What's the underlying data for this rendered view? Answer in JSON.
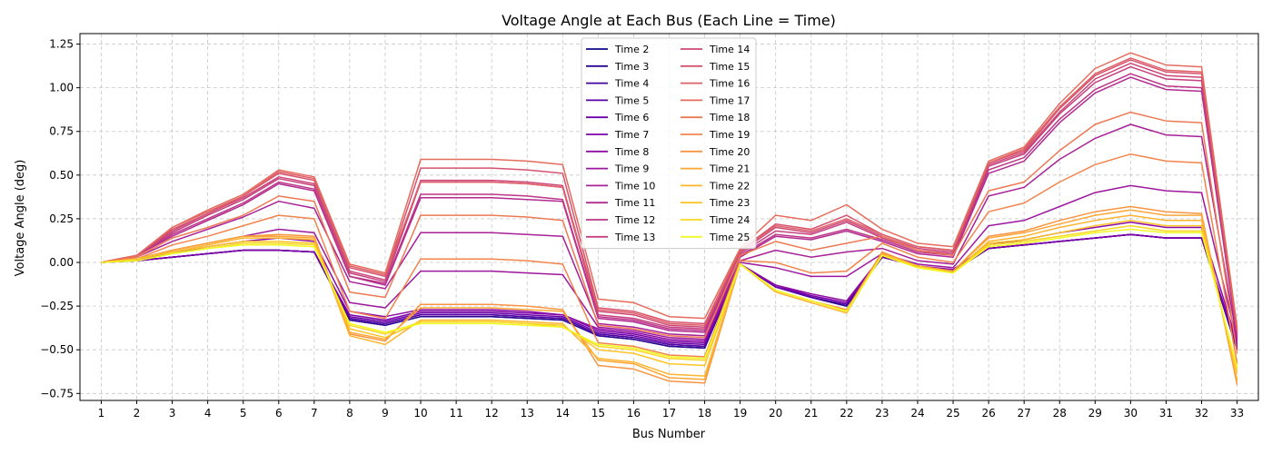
{
  "chart_data": {
    "type": "line",
    "title": "Voltage Angle at Each Bus (Each Line = Time)",
    "xlabel": "Bus Number",
    "ylabel": "Voltage Angle (deg)",
    "x": [
      1,
      2,
      3,
      4,
      5,
      6,
      7,
      8,
      9,
      10,
      11,
      12,
      13,
      14,
      15,
      16,
      17,
      18,
      19,
      20,
      21,
      22,
      23,
      24,
      25,
      26,
      27,
      28,
      29,
      30,
      31,
      32,
      33
    ],
    "xlim": [
      0.4,
      33.6
    ],
    "ylim": [
      -0.79,
      1.31
    ],
    "yticks": [
      -0.75,
      -0.5,
      -0.25,
      0.0,
      0.25,
      0.5,
      0.75,
      1.0,
      1.25
    ],
    "ytick_labels": [
      "−0.75",
      "−0.50",
      "−0.25",
      "0.00",
      "0.25",
      "0.50",
      "0.75",
      "1.00",
      "1.25"
    ],
    "grid": true,
    "legend_position": "top-center",
    "series": [
      {
        "name": "Time 2",
        "color": "#0d0887",
        "values": [
          0,
          0.01,
          0.03,
          0.05,
          0.07,
          0.07,
          0.06,
          -0.33,
          -0.36,
          -0.31,
          -0.31,
          -0.31,
          -0.32,
          -0.33,
          -0.42,
          -0.44,
          -0.48,
          -0.49,
          -0.01,
          -0.14,
          -0.2,
          -0.25,
          0.03,
          -0.02,
          -0.05,
          0.08,
          0.1,
          0.12,
          0.14,
          0.16,
          0.14,
          0.14,
          -0.5
        ]
      },
      {
        "name": "Time 3",
        "color": "#2a0593",
        "values": [
          0,
          0.01,
          0.03,
          0.05,
          0.07,
          0.07,
          0.06,
          -0.33,
          -0.36,
          -0.31,
          -0.31,
          -0.31,
          -0.32,
          -0.33,
          -0.42,
          -0.44,
          -0.48,
          -0.49,
          -0.01,
          -0.14,
          -0.2,
          -0.25,
          0.03,
          -0.02,
          -0.05,
          0.08,
          0.1,
          0.12,
          0.14,
          0.16,
          0.14,
          0.14,
          -0.5
        ]
      },
      {
        "name": "Time 4",
        "color": "#41049d",
        "values": [
          0,
          0.01,
          0.03,
          0.05,
          0.07,
          0.07,
          0.06,
          -0.32,
          -0.35,
          -0.3,
          -0.3,
          -0.3,
          -0.31,
          -0.32,
          -0.41,
          -0.43,
          -0.47,
          -0.48,
          -0.01,
          -0.14,
          -0.2,
          -0.24,
          0.03,
          -0.02,
          -0.05,
          0.08,
          0.1,
          0.12,
          0.14,
          0.16,
          0.14,
          0.14,
          -0.49
        ]
      },
      {
        "name": "Time 5",
        "color": "#5402a3",
        "values": [
          0,
          0.01,
          0.03,
          0.05,
          0.07,
          0.07,
          0.06,
          -0.32,
          -0.35,
          -0.3,
          -0.3,
          -0.3,
          -0.31,
          -0.32,
          -0.41,
          -0.43,
          -0.47,
          -0.48,
          -0.01,
          -0.14,
          -0.2,
          -0.24,
          0.03,
          -0.02,
          -0.05,
          0.08,
          0.1,
          0.12,
          0.14,
          0.16,
          0.14,
          0.14,
          -0.49
        ]
      },
      {
        "name": "Time 6",
        "color": "#6a00a8",
        "values": [
          0,
          0.01,
          0.03,
          0.05,
          0.07,
          0.07,
          0.06,
          -0.31,
          -0.34,
          -0.29,
          -0.29,
          -0.29,
          -0.3,
          -0.31,
          -0.4,
          -0.42,
          -0.46,
          -0.47,
          -0.01,
          -0.14,
          -0.19,
          -0.23,
          0.03,
          -0.02,
          -0.05,
          0.08,
          0.1,
          0.12,
          0.14,
          0.16,
          0.14,
          0.14,
          -0.48
        ]
      },
      {
        "name": "Time 7",
        "color": "#7c02a8",
        "values": [
          0,
          0.01,
          0.03,
          0.05,
          0.07,
          0.07,
          0.06,
          -0.3,
          -0.33,
          -0.28,
          -0.28,
          -0.28,
          -0.29,
          -0.3,
          -0.39,
          -0.41,
          -0.45,
          -0.46,
          -0.01,
          -0.13,
          -0.19,
          -0.23,
          0.03,
          -0.02,
          -0.05,
          0.08,
          0.1,
          0.12,
          0.14,
          0.16,
          0.14,
          0.14,
          -0.47
        ]
      },
      {
        "name": "Time 8",
        "color": "#8f0da4",
        "values": [
          0,
          0.02,
          0.05,
          0.09,
          0.12,
          0.14,
          0.12,
          -0.28,
          -0.31,
          -0.27,
          -0.27,
          -0.27,
          -0.28,
          -0.3,
          -0.38,
          -0.4,
          -0.44,
          -0.45,
          -0.01,
          -0.13,
          -0.18,
          -0.22,
          0.04,
          -0.02,
          -0.04,
          0.1,
          0.13,
          0.17,
          0.2,
          0.23,
          0.2,
          0.2,
          -0.46
        ]
      },
      {
        "name": "Time 9",
        "color": "#9c179e",
        "values": [
          0,
          0.02,
          0.07,
          0.11,
          0.15,
          0.19,
          0.17,
          -0.23,
          -0.26,
          -0.05,
          -0.05,
          -0.05,
          -0.06,
          -0.07,
          -0.37,
          -0.39,
          -0.43,
          -0.44,
          0.0,
          -0.03,
          -0.08,
          -0.08,
          0.05,
          -0.01,
          -0.03,
          0.21,
          0.24,
          0.32,
          0.4,
          0.44,
          0.41,
          0.4,
          -0.45
        ]
      },
      {
        "name": "Time 10",
        "color": "#a72197",
        "values": [
          0,
          0.03,
          0.12,
          0.19,
          0.26,
          0.35,
          0.31,
          -0.11,
          -0.15,
          0.17,
          0.17,
          0.17,
          0.16,
          0.15,
          -0.35,
          -0.37,
          -0.41,
          -0.42,
          0.01,
          0.07,
          0.03,
          0.06,
          0.08,
          0.01,
          -0.01,
          0.38,
          0.43,
          0.59,
          0.71,
          0.79,
          0.73,
          0.72,
          -0.44
        ]
      },
      {
        "name": "Time 11",
        "color": "#b12a90",
        "values": [
          0,
          0.04,
          0.15,
          0.24,
          0.33,
          0.45,
          0.41,
          -0.08,
          -0.13,
          0.37,
          0.37,
          0.37,
          0.36,
          0.35,
          -0.32,
          -0.34,
          -0.39,
          -0.4,
          0.03,
          0.15,
          0.13,
          0.18,
          0.12,
          0.05,
          0.03,
          0.51,
          0.58,
          0.8,
          0.97,
          1.06,
          0.99,
          0.98,
          -0.43
        ]
      },
      {
        "name": "Time 12",
        "color": "#bc3587",
        "values": [
          0,
          0.04,
          0.16,
          0.25,
          0.34,
          0.46,
          0.42,
          -0.08,
          -0.12,
          0.39,
          0.39,
          0.39,
          0.38,
          0.36,
          -0.31,
          -0.33,
          -0.38,
          -0.39,
          0.04,
          0.16,
          0.14,
          0.19,
          0.13,
          0.06,
          0.04,
          0.53,
          0.6,
          0.82,
          0.99,
          1.08,
          1.01,
          1.0,
          -0.42
        ]
      },
      {
        "name": "Time 13",
        "color": "#c5407e",
        "values": [
          0,
          0.04,
          0.17,
          0.27,
          0.36,
          0.48,
          0.44,
          -0.06,
          -0.11,
          0.46,
          0.46,
          0.46,
          0.45,
          0.43,
          -0.3,
          -0.32,
          -0.37,
          -0.38,
          0.05,
          0.18,
          0.16,
          0.23,
          0.14,
          0.07,
          0.05,
          0.55,
          0.62,
          0.85,
          1.03,
          1.12,
          1.05,
          1.04,
          -0.41
        ]
      },
      {
        "name": "Time 14",
        "color": "#cc4778",
        "values": [
          0,
          0.04,
          0.18,
          0.28,
          0.37,
          0.49,
          0.45,
          -0.05,
          -0.1,
          0.47,
          0.47,
          0.47,
          0.46,
          0.44,
          -0.28,
          -0.3,
          -0.36,
          -0.37,
          0.06,
          0.2,
          0.17,
          0.24,
          0.15,
          0.08,
          0.06,
          0.56,
          0.63,
          0.86,
          1.05,
          1.14,
          1.07,
          1.06,
          -0.4
        ]
      },
      {
        "name": "Time 15",
        "color": "#d5536f",
        "values": [
          0,
          0.04,
          0.19,
          0.28,
          0.38,
          0.51,
          0.47,
          -0.03,
          -0.08,
          0.54,
          0.54,
          0.54,
          0.53,
          0.51,
          -0.26,
          -0.28,
          -0.34,
          -0.35,
          0.07,
          0.22,
          0.19,
          0.27,
          0.16,
          0.09,
          0.07,
          0.57,
          0.64,
          0.88,
          1.07,
          1.16,
          1.09,
          1.08,
          -0.38
        ]
      },
      {
        "name": "Time 16",
        "color": "#de5f65",
        "values": [
          0,
          0.04,
          0.2,
          0.29,
          0.38,
          0.52,
          0.48,
          -0.02,
          -0.07,
          0.46,
          0.46,
          0.46,
          0.45,
          0.43,
          -0.27,
          -0.29,
          -0.35,
          -0.36,
          0.07,
          0.21,
          0.18,
          0.25,
          0.16,
          0.09,
          0.07,
          0.57,
          0.65,
          0.89,
          1.08,
          1.17,
          1.1,
          1.09,
          -0.39
        ]
      },
      {
        "name": "Time 17",
        "color": "#e56b5d",
        "values": [
          0,
          0.04,
          0.2,
          0.3,
          0.39,
          0.53,
          0.49,
          -0.01,
          -0.06,
          0.59,
          0.59,
          0.59,
          0.58,
          0.56,
          -0.21,
          -0.23,
          -0.31,
          -0.32,
          0.08,
          0.27,
          0.24,
          0.33,
          0.19,
          0.11,
          0.09,
          0.58,
          0.66,
          0.91,
          1.11,
          1.2,
          1.13,
          1.12,
          -0.37
        ]
      },
      {
        "name": "Time 18",
        "color": "#ed7953",
        "values": [
          0,
          0.03,
          0.14,
          0.2,
          0.27,
          0.38,
          0.35,
          -0.17,
          -0.2,
          0.27,
          0.27,
          0.27,
          0.26,
          0.24,
          -0.36,
          -0.38,
          -0.42,
          -0.43,
          0.04,
          0.12,
          0.07,
          0.11,
          0.15,
          0.07,
          0.04,
          0.41,
          0.46,
          0.64,
          0.79,
          0.86,
          0.81,
          0.8,
          -0.52
        ]
      },
      {
        "name": "Time 19",
        "color": "#f2844b",
        "values": [
          0,
          0.02,
          0.1,
          0.15,
          0.21,
          0.27,
          0.25,
          -0.28,
          -0.32,
          0.02,
          0.02,
          0.02,
          0.01,
          -0.01,
          -0.46,
          -0.48,
          -0.53,
          -0.54,
          0.01,
          0.0,
          -0.06,
          -0.05,
          0.11,
          0.03,
          0.0,
          0.29,
          0.34,
          0.46,
          0.56,
          0.62,
          0.58,
          0.57,
          -0.58
        ]
      },
      {
        "name": "Time 20",
        "color": "#f89441",
        "values": [
          0,
          0.02,
          0.07,
          0.11,
          0.15,
          0.16,
          0.15,
          -0.41,
          -0.45,
          -0.24,
          -0.24,
          -0.24,
          -0.25,
          -0.27,
          -0.59,
          -0.61,
          -0.68,
          -0.69,
          -0.01,
          -0.16,
          -0.22,
          -0.27,
          0.06,
          -0.02,
          -0.05,
          0.15,
          0.18,
          0.24,
          0.29,
          0.32,
          0.29,
          0.28,
          -0.7
        ]
      },
      {
        "name": "Time 21",
        "color": "#fca636",
        "values": [
          0,
          0.02,
          0.07,
          0.11,
          0.15,
          0.15,
          0.14,
          -0.4,
          -0.44,
          -0.26,
          -0.26,
          -0.26,
          -0.27,
          -0.28,
          -0.56,
          -0.58,
          -0.66,
          -0.67,
          -0.01,
          -0.16,
          -0.22,
          -0.28,
          0.05,
          -0.02,
          -0.05,
          0.14,
          0.17,
          0.22,
          0.27,
          0.3,
          0.27,
          0.27,
          -0.68
        ]
      },
      {
        "name": "Time 22",
        "color": "#fdb42f",
        "values": [
          0,
          0.02,
          0.06,
          0.1,
          0.14,
          0.14,
          0.13,
          -0.42,
          -0.47,
          -0.33,
          -0.33,
          -0.33,
          -0.34,
          -0.35,
          -0.55,
          -0.57,
          -0.64,
          -0.65,
          -0.01,
          -0.17,
          -0.23,
          -0.29,
          0.05,
          -0.02,
          -0.06,
          0.12,
          0.15,
          0.2,
          0.24,
          0.27,
          0.24,
          0.24,
          -0.67
        ]
      },
      {
        "name": "Time 23",
        "color": "#fbc529",
        "values": [
          0,
          0.02,
          0.06,
          0.09,
          0.12,
          0.12,
          0.11,
          -0.38,
          -0.43,
          -0.34,
          -0.34,
          -0.34,
          -0.35,
          -0.36,
          -0.5,
          -0.52,
          -0.58,
          -0.59,
          -0.01,
          -0.16,
          -0.22,
          -0.28,
          0.04,
          -0.02,
          -0.06,
          0.11,
          0.13,
          0.17,
          0.21,
          0.24,
          0.21,
          0.21,
          -0.63
        ]
      },
      {
        "name": "Time 24",
        "color": "#f9d722",
        "values": [
          0,
          0.01,
          0.05,
          0.08,
          0.11,
          0.11,
          0.1,
          -0.36,
          -0.41,
          -0.34,
          -0.34,
          -0.34,
          -0.35,
          -0.37,
          -0.48,
          -0.5,
          -0.55,
          -0.56,
          -0.01,
          -0.16,
          -0.22,
          -0.28,
          0.04,
          -0.03,
          -0.06,
          0.1,
          0.12,
          0.15,
          0.18,
          0.21,
          0.18,
          0.18,
          -0.61
        ]
      },
      {
        "name": "Time 25",
        "color": "#f0f921",
        "values": [
          0,
          0.01,
          0.05,
          0.08,
          0.1,
          0.1,
          0.09,
          -0.35,
          -0.4,
          -0.35,
          -0.35,
          -0.35,
          -0.36,
          -0.37,
          -0.47,
          -0.49,
          -0.54,
          -0.55,
          -0.01,
          -0.16,
          -0.22,
          -0.28,
          0.04,
          -0.03,
          -0.06,
          0.09,
          0.11,
          0.14,
          0.17,
          0.19,
          0.17,
          0.17,
          -0.6
        ]
      }
    ]
  }
}
